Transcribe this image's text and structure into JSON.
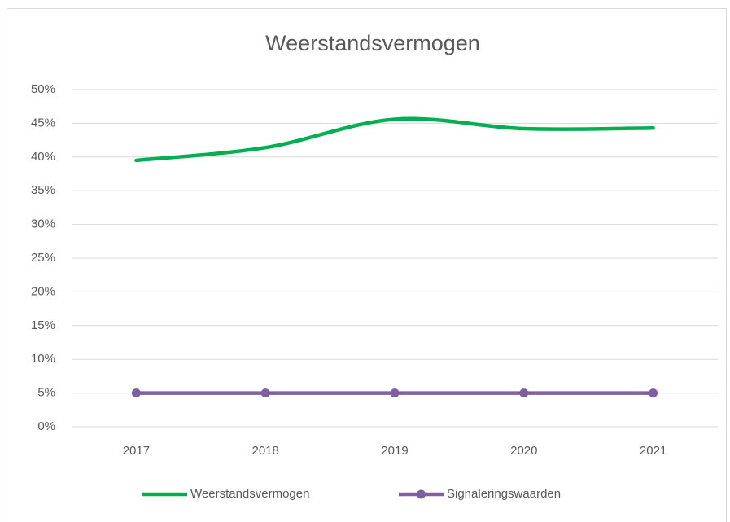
{
  "chart_data": {
    "type": "line",
    "title": "Weerstandsvermogen",
    "categories": [
      "2017",
      "2018",
      "2019",
      "2020",
      "2021"
    ],
    "series": [
      {
        "name": "Weerstandsvermogen",
        "color": "#00b050",
        "values": [
          39.5,
          41.4,
          45.6,
          44.2,
          44.3
        ],
        "smooth": true,
        "markers": false
      },
      {
        "name": "Signaleringswaarden",
        "color": "#7f5fa0",
        "values": [
          5,
          5,
          5,
          5,
          5
        ],
        "smooth": false,
        "markers": true
      }
    ],
    "ylim": [
      0,
      50
    ],
    "yticks": [
      {
        "value": 0,
        "label": "0%"
      },
      {
        "value": 5,
        "label": "5%"
      },
      {
        "value": 10,
        "label": "10%"
      },
      {
        "value": 15,
        "label": "15%"
      },
      {
        "value": 20,
        "label": "20%"
      },
      {
        "value": 25,
        "label": "25%"
      },
      {
        "value": 30,
        "label": "30%"
      },
      {
        "value": 35,
        "label": "35%"
      },
      {
        "value": 40,
        "label": "40%"
      },
      {
        "value": 45,
        "label": "45%"
      },
      {
        "value": 50,
        "label": "50%"
      }
    ],
    "grid": true,
    "legend": "bottom"
  }
}
